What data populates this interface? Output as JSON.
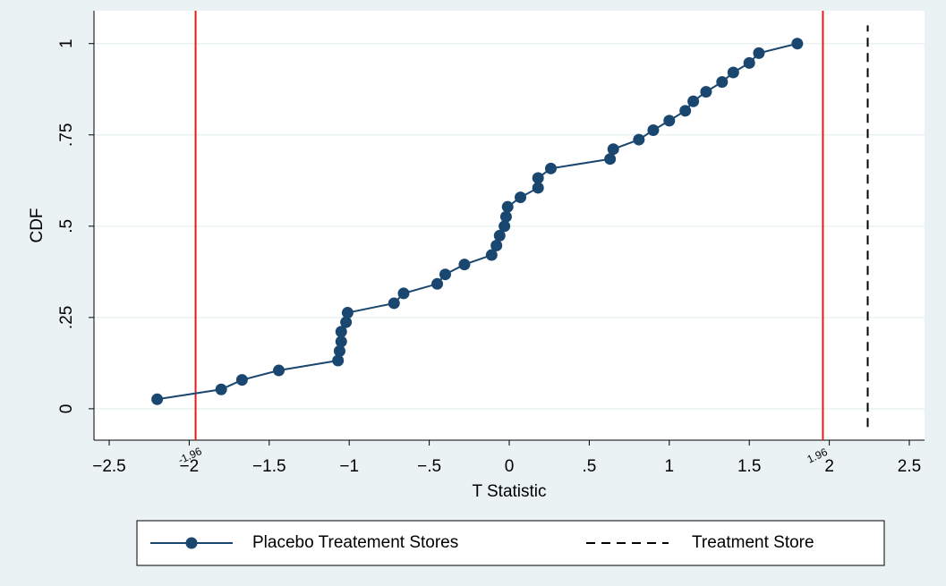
{
  "chart_data": {
    "type": "line",
    "x_label": "T Statistic",
    "y_label": "CDF",
    "xlim": [
      -2.595,
      2.595
    ],
    "ylim": [
      -0.086,
      1.09
    ],
    "xticks": [
      {
        "value": -2.5,
        "label": "−2.5"
      },
      {
        "value": -2,
        "label": "−2"
      },
      {
        "value": -1.5,
        "label": "−1.5"
      },
      {
        "value": -1,
        "label": "−1"
      },
      {
        "value": -0.5,
        "label": "−.5"
      },
      0,
      {
        "value": 0.5,
        "label": ".5"
      },
      1,
      1.5,
      2,
      2.5
    ],
    "yticks": [
      0,
      {
        "value": 0.25,
        "label": ".25"
      },
      {
        "value": 0.5,
        "label": ".5"
      },
      {
        "value": 0.75,
        "label": ".75"
      },
      1
    ],
    "grid": true,
    "reference_lines": [
      {
        "value": -1.96,
        "label": "-1.96",
        "color": "#e31a1c"
      },
      {
        "value": 1.96,
        "label": "1.96",
        "color": "#e31a1c"
      }
    ],
    "series": [
      {
        "name": "Placebo Treatement Stores",
        "color": "#1a476f",
        "markers": true,
        "x": [
          -2.2,
          -1.8,
          -1.67,
          -1.44,
          -1.07,
          -1.06,
          -1.05,
          -1.05,
          -1.02,
          -1.01,
          -0.72,
          -0.66,
          -0.45,
          -0.4,
          -0.28,
          -0.11,
          -0.08,
          -0.06,
          -0.03,
          -0.02,
          -0.01,
          0.07,
          0.18,
          0.18,
          0.26,
          0.63,
          0.65,
          0.81,
          0.9,
          1.0,
          1.1,
          1.15,
          1.23,
          1.33,
          1.4,
          1.5,
          1.56,
          1.8
        ],
        "values": [
          0.026,
          0.053,
          0.079,
          0.105,
          0.132,
          0.158,
          0.184,
          0.211,
          0.237,
          0.263,
          0.289,
          0.316,
          0.342,
          0.368,
          0.395,
          0.421,
          0.447,
          0.474,
          0.5,
          0.526,
          0.553,
          0.579,
          0.605,
          0.632,
          0.658,
          0.684,
          0.711,
          0.737,
          0.763,
          0.789,
          0.816,
          0.842,
          0.868,
          0.895,
          0.921,
          0.947,
          0.974,
          1.0
        ]
      },
      {
        "name": "Treatment Store",
        "color": "#000000",
        "dashed": true,
        "markers": false,
        "x": [
          2.24,
          2.24
        ],
        "values": [
          -0.05,
          1.05
        ]
      }
    ]
  }
}
